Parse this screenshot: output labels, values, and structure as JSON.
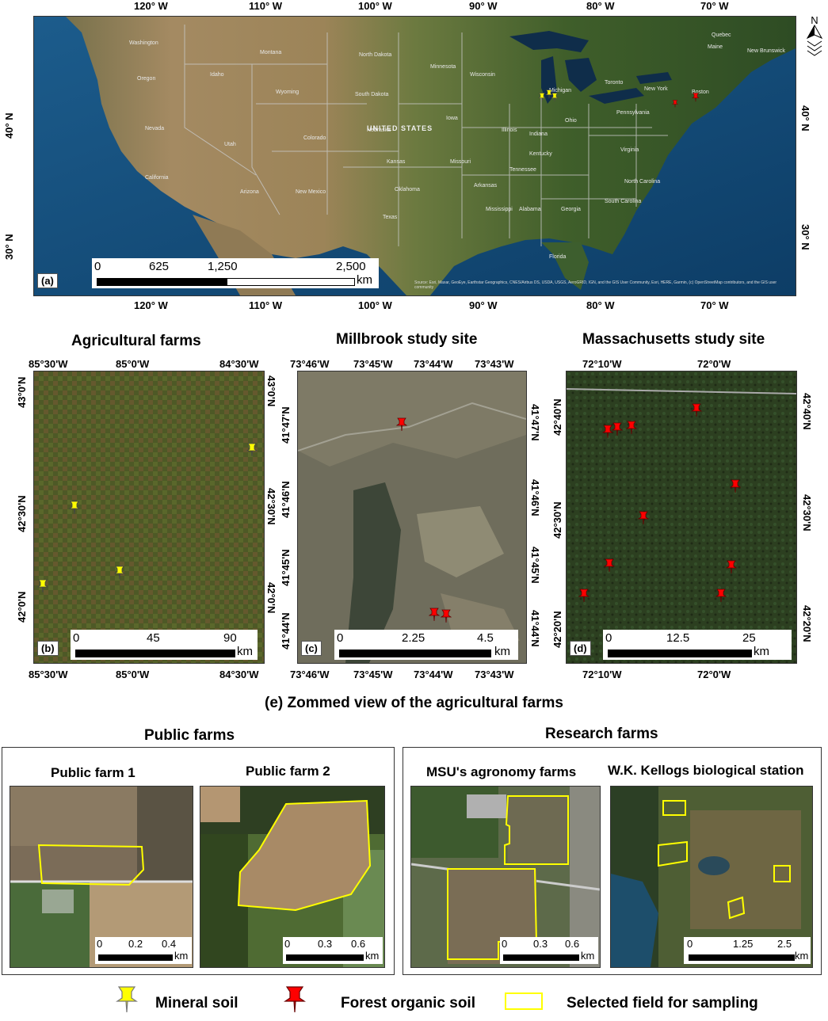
{
  "panel_a": {
    "tag": "(a)",
    "lon_labels": [
      "120° W",
      "110° W",
      "100° W",
      "90° W",
      "80° W",
      "70° W"
    ],
    "lat_labels": [
      "40° N",
      "30° N"
    ],
    "scale": {
      "ticks": [
        "0",
        "625",
        "1,250",
        "2,500"
      ],
      "unit": "km"
    },
    "country_label": "UNITED STATES",
    "credit": "Source: Esri, Maxar, GeoEye, Earthstar Geographics, CNES/Airbus DS, USDA, USGS, AeroGRID, IGN, and the GIS User Community, Esri, HERE, Garmin, (c) OpenStreetMap contributors, and the GIS user community"
  },
  "panel_b": {
    "title": "Agricultural farms",
    "tag": "(b)",
    "lon_labels": [
      "85°30'W",
      "85°0'W",
      "84°30'W"
    ],
    "lat_labels": [
      "43°0'N",
      "42°30'N",
      "42°0'N"
    ],
    "scale": {
      "ticks": [
        "0",
        "45",
        "90"
      ],
      "unit": "km"
    }
  },
  "panel_c": {
    "title": "Millbrook study site",
    "tag": "(c)",
    "lon_labels": [
      "73°46'W",
      "73°45'W",
      "73°44'W",
      "73°43'W"
    ],
    "lat_labels": [
      "41°47'N",
      "41°46'N",
      "41°45'N",
      "41°44'N"
    ],
    "scale": {
      "ticks": [
        "0",
        "2.25",
        "4.5"
      ],
      "unit": "km"
    }
  },
  "panel_d": {
    "title": "Massachusetts study site",
    "tag": "(d)",
    "lon_labels": [
      "72°10'W",
      "72°0'W"
    ],
    "lat_labels": [
      "42°40'N",
      "42°30'N",
      "42°20'N"
    ],
    "scale": {
      "ticks": [
        "0",
        "12.5",
        "25"
      ],
      "unit": "km"
    }
  },
  "panel_e": {
    "title": "(e) Zommed view of the agricultural farms",
    "groups": [
      {
        "title": "Public farms",
        "farms": [
          {
            "title": "Public farm 1",
            "scale": {
              "ticks": [
                "0",
                "0.2",
                "0.4"
              ],
              "unit": "km"
            }
          },
          {
            "title": "Public farm 2",
            "scale": {
              "ticks": [
                "0",
                "0.3",
                "0.6"
              ],
              "unit": "km"
            }
          }
        ]
      },
      {
        "title": "Research farms",
        "farms": [
          {
            "title": "MSU's agronomy farms",
            "scale": {
              "ticks": [
                "0",
                "0.3",
                "0.6"
              ],
              "unit": "km"
            }
          },
          {
            "title": "W.K. Kellogs biological station",
            "scale": {
              "ticks": [
                "0",
                "1.25",
                "2.5"
              ],
              "unit": "km"
            }
          }
        ]
      }
    ]
  },
  "legend": {
    "mineral": {
      "label": "Mineral soil",
      "color": "#ffff00"
    },
    "forest": {
      "label": "Forest organic soil",
      "color": "#ff0000"
    },
    "field": {
      "label": "Selected field for sampling",
      "color": "#ffff00"
    }
  },
  "north_arrow": "N-arrow-icon"
}
